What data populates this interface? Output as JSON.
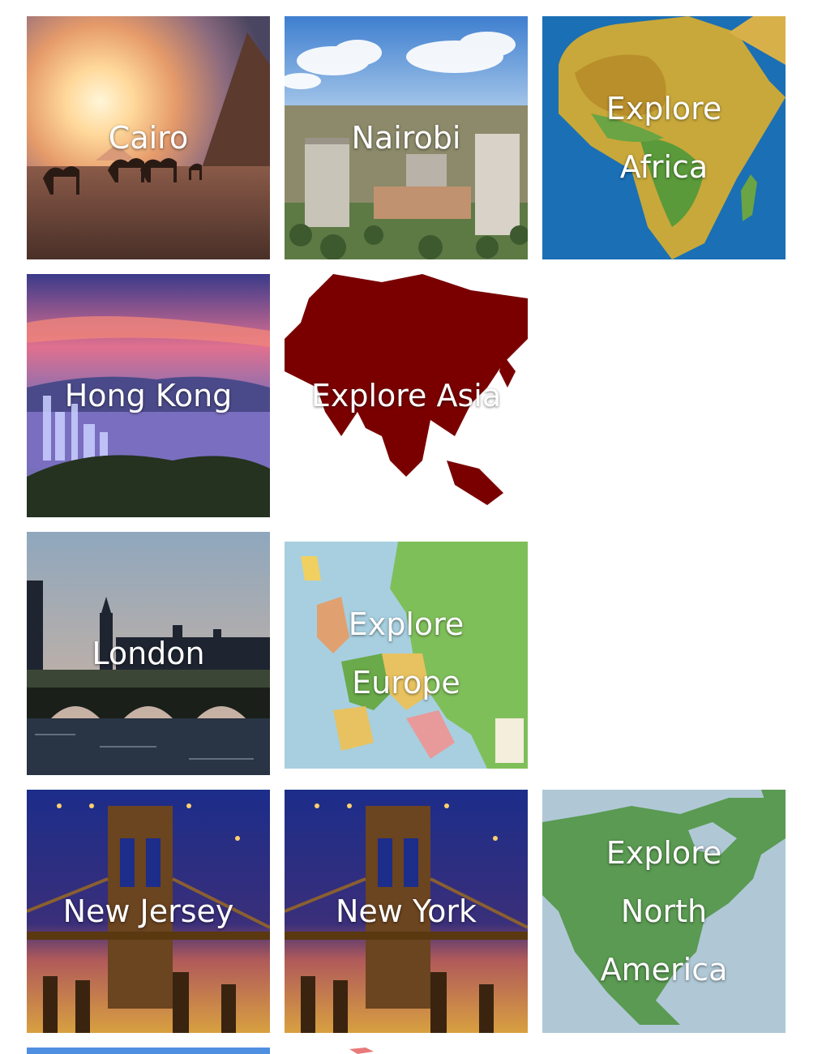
{
  "tiles": {
    "cairo": {
      "label": "Cairo"
    },
    "nairobi": {
      "label": "Nairobi"
    },
    "africa": {
      "line1": "Explore",
      "line2": "Africa"
    },
    "hongkong": {
      "label": "Hong Kong"
    },
    "asia": {
      "label": "Explore Asia"
    },
    "london": {
      "label": "London"
    },
    "europe": {
      "line1": "Explore",
      "line2": "Europe"
    },
    "newjersey": {
      "label": "New Jersey"
    },
    "newyork": {
      "label": "New York"
    },
    "namerica": {
      "line1": "Explore",
      "line2": "North",
      "line3": "America"
    }
  },
  "colors": {
    "text": "#ffffff",
    "africa_ocean": "#1a6fb5",
    "asia_map": "#7a0000",
    "namerica_ocean": "#b0c8d6",
    "namerica_land": "#5a9a52"
  }
}
